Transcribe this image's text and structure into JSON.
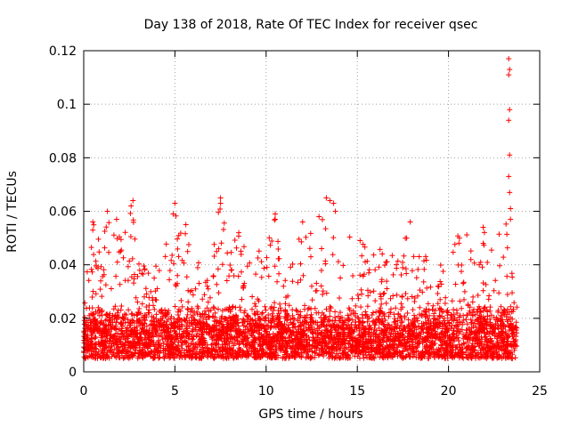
{
  "chart_data": {
    "type": "scatter",
    "title": "Day 138 of 2018, Rate Of TEC Index for receiver qsec",
    "xlabel": "GPS time / hours",
    "ylabel": "ROTI / TECUs",
    "xlim": [
      0,
      25
    ],
    "ylim": [
      0,
      0.12
    ],
    "xticks": [
      0,
      5,
      10,
      15,
      20,
      25
    ],
    "yticks": [
      0,
      0.02,
      0.04,
      0.06,
      0.08,
      0.1,
      0.12
    ],
    "xtick_labels": [
      "0",
      "5",
      "10",
      "15",
      "20",
      "25"
    ],
    "ytick_labels": [
      "0",
      "0.02",
      "0.04",
      "0.06",
      "0.08",
      "0.1",
      "0.12"
    ],
    "grid": true,
    "marker": "+",
    "series": [
      {
        "name": "ROTI",
        "color": "#ff0000",
        "x_range": [
          0,
          23.75
        ],
        "typical_band": [
          0.005,
          0.025
        ],
        "upper_envelope": [
          [
            0.0,
            0.037
          ],
          [
            0.3,
            0.045
          ],
          [
            0.5,
            0.056
          ],
          [
            1.0,
            0.046
          ],
          [
            1.3,
            0.06
          ],
          [
            1.8,
            0.057
          ],
          [
            2.2,
            0.05
          ],
          [
            2.7,
            0.064
          ],
          [
            3.0,
            0.042
          ],
          [
            3.5,
            0.04
          ],
          [
            4.0,
            0.043
          ],
          [
            4.5,
            0.05
          ],
          [
            5.0,
            0.063
          ],
          [
            5.5,
            0.055
          ],
          [
            6.0,
            0.045
          ],
          [
            6.5,
            0.041
          ],
          [
            7.0,
            0.044
          ],
          [
            7.5,
            0.065
          ],
          [
            8.0,
            0.046
          ],
          [
            8.5,
            0.052
          ],
          [
            9.0,
            0.048
          ],
          [
            9.5,
            0.045
          ],
          [
            10.0,
            0.046
          ],
          [
            10.5,
            0.059
          ],
          [
            11.0,
            0.04
          ],
          [
            11.5,
            0.045
          ],
          [
            12.0,
            0.056
          ],
          [
            12.5,
            0.058
          ],
          [
            13.0,
            0.055
          ],
          [
            13.4,
            0.065
          ],
          [
            13.8,
            0.062
          ],
          [
            14.2,
            0.05
          ],
          [
            14.8,
            0.054
          ],
          [
            15.3,
            0.05
          ],
          [
            15.8,
            0.047
          ],
          [
            16.5,
            0.046
          ],
          [
            17.0,
            0.046
          ],
          [
            17.5,
            0.048
          ],
          [
            18.0,
            0.056
          ],
          [
            18.5,
            0.045
          ],
          [
            19.0,
            0.042
          ],
          [
            19.5,
            0.045
          ],
          [
            20.0,
            0.04
          ],
          [
            20.5,
            0.052
          ],
          [
            21.0,
            0.053
          ],
          [
            21.5,
            0.04
          ],
          [
            22.0,
            0.053
          ],
          [
            22.5,
            0.048
          ],
          [
            23.0,
            0.055
          ],
          [
            23.3,
            0.067
          ],
          [
            23.6,
            0.05
          ]
        ],
        "outliers": [
          {
            "x": 0.5,
            "y": 0.056
          },
          {
            "x": 0.5,
            "y": 0.053
          },
          {
            "x": 1.3,
            "y": 0.06
          },
          {
            "x": 1.8,
            "y": 0.057
          },
          {
            "x": 2.7,
            "y": 0.064
          },
          {
            "x": 2.6,
            "y": 0.062
          },
          {
            "x": 5.0,
            "y": 0.063
          },
          {
            "x": 4.9,
            "y": 0.059
          },
          {
            "x": 5.6,
            "y": 0.055
          },
          {
            "x": 7.5,
            "y": 0.065
          },
          {
            "x": 7.5,
            "y": 0.063
          },
          {
            "x": 7.4,
            "y": 0.046
          },
          {
            "x": 8.5,
            "y": 0.052
          },
          {
            "x": 10.5,
            "y": 0.059
          },
          {
            "x": 10.5,
            "y": 0.057
          },
          {
            "x": 12.0,
            "y": 0.056
          },
          {
            "x": 12.9,
            "y": 0.058
          },
          {
            "x": 13.3,
            "y": 0.065
          },
          {
            "x": 13.5,
            "y": 0.064
          },
          {
            "x": 13.7,
            "y": 0.063
          },
          {
            "x": 13.8,
            "y": 0.06
          },
          {
            "x": 17.9,
            "y": 0.056
          },
          {
            "x": 20.6,
            "y": 0.05
          },
          {
            "x": 21.9,
            "y": 0.054
          },
          {
            "x": 23.3,
            "y": 0.117
          },
          {
            "x": 23.35,
            "y": 0.113
          },
          {
            "x": 23.3,
            "y": 0.111
          },
          {
            "x": 23.35,
            "y": 0.098
          },
          {
            "x": 23.3,
            "y": 0.094
          },
          {
            "x": 23.35,
            "y": 0.081
          },
          {
            "x": 23.3,
            "y": 0.073
          },
          {
            "x": 23.35,
            "y": 0.067
          },
          {
            "x": 23.4,
            "y": 0.061
          },
          {
            "x": 23.4,
            "y": 0.057
          }
        ]
      }
    ]
  }
}
